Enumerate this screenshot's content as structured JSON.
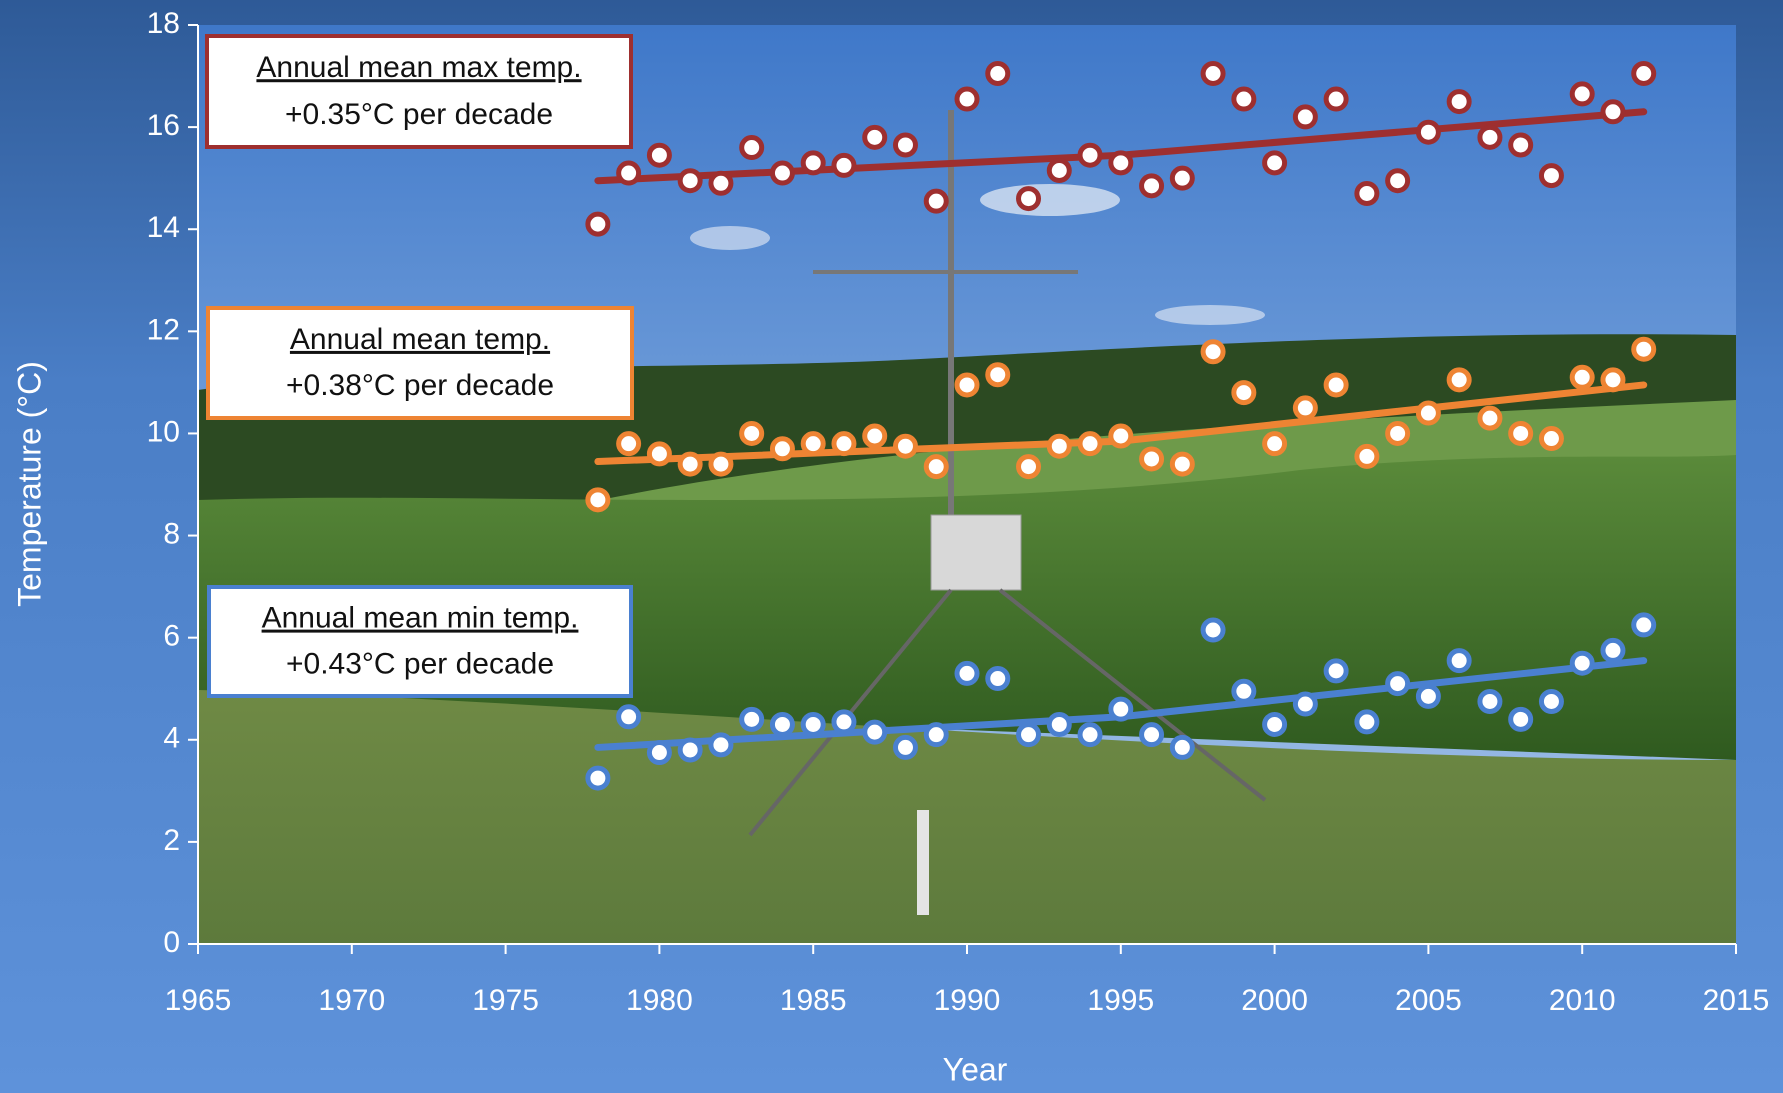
{
  "chart_data": {
    "type": "scatter",
    "x_label": "Year",
    "y_label": "Temperature (°C)",
    "xlim": [
      1965,
      2015
    ],
    "ylim": [
      0,
      18
    ],
    "xticks": [
      1965,
      1970,
      1975,
      1980,
      1985,
      1990,
      1995,
      2000,
      2005,
      2010,
      2015
    ],
    "yticks": [
      0,
      2,
      4,
      6,
      8,
      10,
      12,
      14,
      16,
      18
    ],
    "x": [
      1978,
      1979,
      1980,
      1981,
      1982,
      1983,
      1984,
      1985,
      1986,
      1987,
      1988,
      1989,
      1990,
      1991,
      1992,
      1993,
      1994,
      1995,
      1996,
      1997,
      1998,
      1999,
      2000,
      2001,
      2002,
      2003,
      2004,
      2005,
      2006,
      2007,
      2008,
      2009,
      2010,
      2011,
      2012
    ],
    "series": [
      {
        "name": "Annual mean max  temp.",
        "annotation": "+0.35°C per decade",
        "color": "#9e2f2f",
        "values": [
          14.1,
          15.1,
          15.45,
          14.95,
          14.9,
          15.6,
          15.1,
          15.3,
          15.25,
          15.8,
          15.65,
          14.55,
          16.55,
          17.05,
          14.6,
          15.15,
          15.45,
          15.3,
          14.85,
          15.0,
          17.05,
          16.55,
          15.3,
          16.2,
          16.55,
          14.7,
          14.95,
          15.9,
          16.5,
          15.8,
          15.65,
          15.05,
          16.65,
          16.3,
          17.05
        ],
        "trend_x": [
          1978,
          1995,
          2012
        ],
        "trend_values": [
          14.95,
          15.45,
          16.3
        ]
      },
      {
        "name": "Annual mean temp. ",
        "annotation": "+0.38°C per decade",
        "color": "#ee8433",
        "values": [
          8.7,
          9.8,
          9.6,
          9.4,
          9.4,
          10.0,
          9.7,
          9.8,
          9.8,
          9.95,
          9.75,
          9.35,
          10.95,
          11.15,
          9.35,
          9.75,
          9.8,
          9.95,
          9.5,
          9.4,
          11.6,
          10.8,
          9.8,
          10.5,
          10.95,
          9.55,
          10.0,
          10.4,
          11.05,
          10.3,
          10.0,
          9.9,
          11.1,
          11.05,
          11.65
        ],
        "trend_x": [
          1978,
          1995,
          2012
        ],
        "trend_values": [
          9.45,
          9.85,
          10.95
        ]
      },
      {
        "name": "Annual mean min temp.",
        "annotation": "+0.43°C per decade",
        "color": "#4a80d0",
        "values": [
          3.25,
          4.45,
          3.75,
          3.8,
          3.9,
          4.4,
          4.3,
          4.3,
          4.35,
          4.15,
          3.85,
          4.1,
          5.3,
          5.2,
          4.1,
          4.3,
          4.1,
          4.6,
          4.1,
          3.85,
          6.15,
          4.95,
          4.3,
          4.7,
          5.35,
          4.35,
          5.1,
          4.85,
          5.55,
          4.75,
          4.4,
          4.75,
          5.5,
          5.75,
          6.25
        ],
        "trend_x": [
          1978,
          1995,
          2012
        ],
        "trend_values": [
          3.85,
          4.45,
          5.55
        ]
      }
    ]
  }
}
